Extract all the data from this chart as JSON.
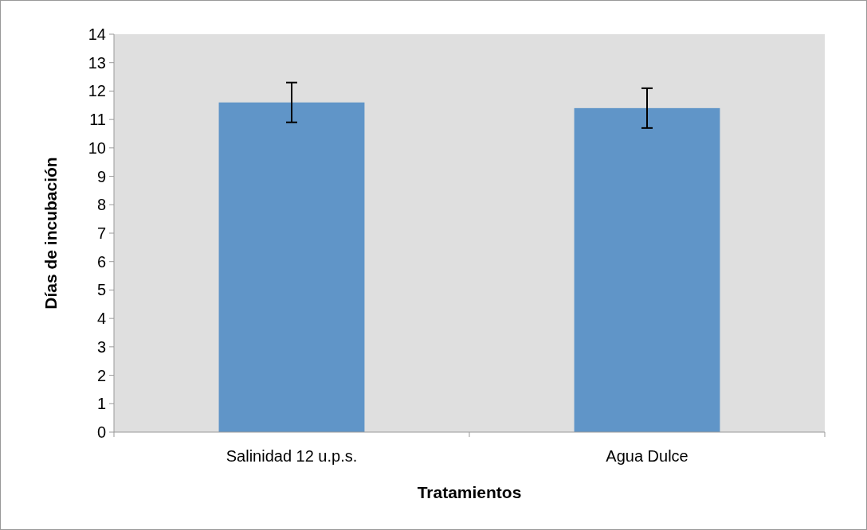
{
  "chart_data": {
    "type": "bar",
    "xlabel": "Tratamientos",
    "ylabel": "Días de incubación",
    "categories": [
      "Salinidad 12 u.p.s.",
      "Agua Dulce"
    ],
    "values": [
      11.6,
      11.4
    ],
    "errors": [
      0.7,
      0.7
    ],
    "color": "#6095c8",
    "ylim": [
      0,
      14
    ],
    "yticks": [
      0,
      1,
      2,
      3,
      4,
      5,
      6,
      7,
      8,
      9,
      10,
      11,
      12,
      13,
      14
    ],
    "grid": false
  }
}
